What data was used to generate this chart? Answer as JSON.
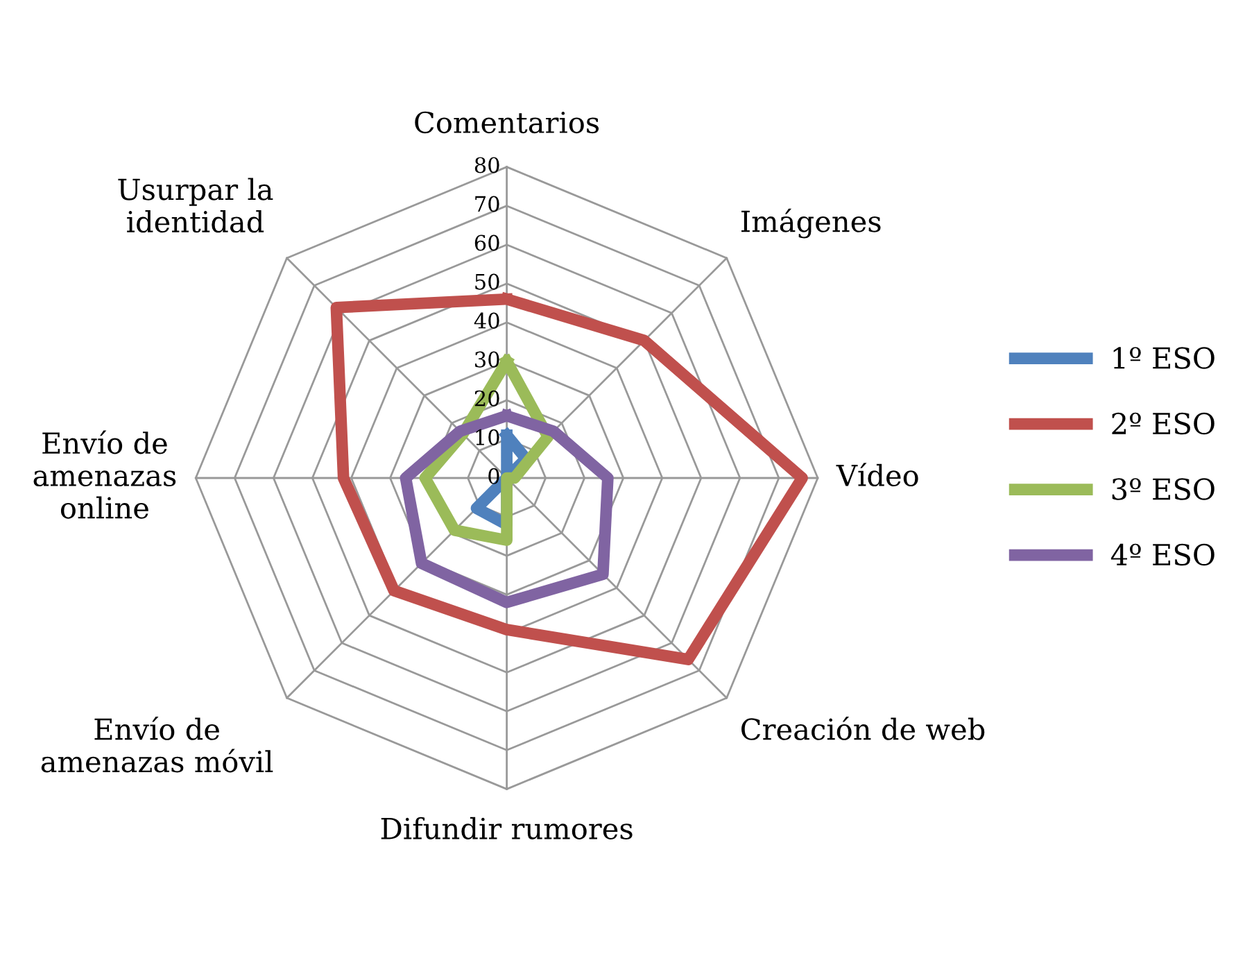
{
  "chart_data": {
    "type": "radar",
    "categories": [
      "Comentarios",
      "Imágenes",
      "Vídeo",
      "Creación de web",
      "Difundir rumores",
      "Envío de amenazas móvil",
      "Envío de amenazas online",
      "Usurpar la identidad"
    ],
    "series": [
      {
        "name": "1º ESO",
        "color": "#4f81bd",
        "values": [
          11,
          7,
          0,
          0,
          12,
          11,
          0,
          0
        ]
      },
      {
        "name": "2º ESO",
        "color": "#c0504d",
        "values": [
          46,
          50,
          76,
          66,
          39,
          41,
          42,
          62
        ]
      },
      {
        "name": "3º ESO",
        "color": "#9bbb59",
        "values": [
          30,
          15,
          2,
          0,
          16,
          19,
          21,
          16
        ]
      },
      {
        "name": "4º ESO",
        "color": "#8064a2",
        "values": [
          16,
          17,
          26,
          35,
          32,
          31,
          26,
          17
        ]
      }
    ],
    "ylim": [
      0,
      80
    ],
    "yticks": [
      0,
      10,
      20,
      30,
      40,
      50,
      60,
      70,
      80
    ],
    "grid": true,
    "legend": "right",
    "marker": "none",
    "line_style": "solid"
  }
}
